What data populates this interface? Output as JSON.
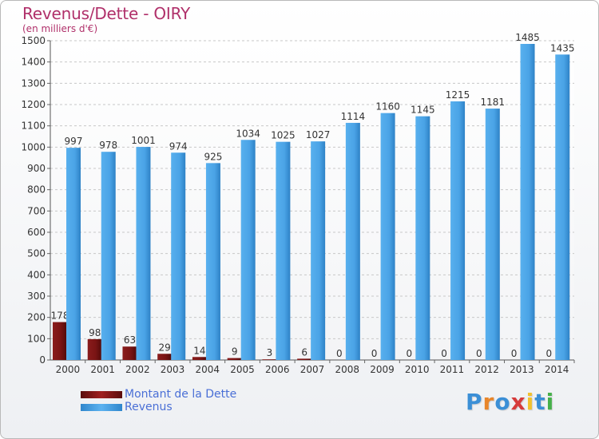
{
  "header": {
    "title": "Revenus/Dette - OIRY",
    "subtitle": "(en milliers d'€)"
  },
  "chart_data": {
    "type": "bar",
    "categories": [
      "2000",
      "2001",
      "2002",
      "2003",
      "2004",
      "2005",
      "2006",
      "2007",
      "2008",
      "2009",
      "2010",
      "2011",
      "2012",
      "2013",
      "2014"
    ],
    "series": [
      {
        "name": "Montant de la Dette",
        "values": [
          178,
          98,
          63,
          29,
          14,
          9,
          3,
          6,
          0,
          0,
          0,
          0,
          0,
          0,
          0
        ],
        "color": "#7a1414"
      },
      {
        "name": "Revenus",
        "values": [
          997,
          978,
          1001,
          974,
          925,
          1034,
          1025,
          1027,
          1114,
          1160,
          1145,
          1215,
          1181,
          1485,
          1435
        ],
        "color": "#4aa3e6"
      }
    ],
    "ylim": [
      0,
      1500
    ],
    "yticks": [
      0,
      100,
      200,
      300,
      400,
      500,
      600,
      700,
      800,
      900,
      1000,
      1100,
      1200,
      1300,
      1400,
      1500
    ],
    "grid": true,
    "legend_position": "bottom-left"
  },
  "legend": {
    "items": [
      {
        "label": "Montant de la Dette",
        "color": "#7a1414"
      },
      {
        "label": "Revenus",
        "color": "#4aa3e6"
      }
    ]
  },
  "logo": {
    "letters": [
      "P",
      "r",
      "o",
      "x",
      "i",
      "t",
      "i"
    ],
    "colors": [
      "#3b8fd6",
      "#e8862a",
      "#3b8fd6",
      "#d63b3b",
      "#f2c12e",
      "#3b8fd6",
      "#46b04a"
    ]
  }
}
